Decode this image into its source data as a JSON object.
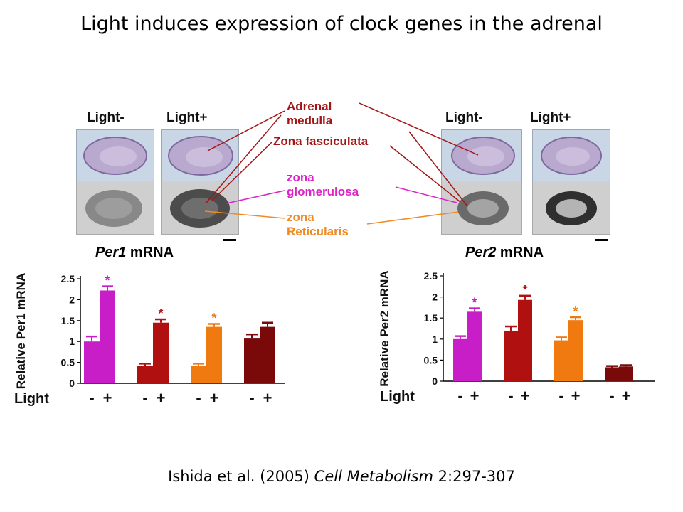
{
  "slide": {
    "title": "Light induces expression of clock genes in the adrenal",
    "citation_authors": "Ishida et al. (2005) ",
    "citation_journal": "Cell Metabolism",
    "citation_pages": " 2:297-307"
  },
  "figure": {
    "left_headers": [
      "Light-",
      "Light+"
    ],
    "right_headers": [
      "Light-",
      "Light+"
    ],
    "labels": {
      "adrenal_medulla": [
        "Adrenal",
        "medulla"
      ],
      "zona_fasciculata": "Zona fasciculata",
      "zona_glomerulosa": [
        "zona",
        "glomerulosa"
      ],
      "zona_reticularis": [
        "zona",
        "Reticularis"
      ]
    },
    "label_colors": {
      "adrenal_medulla": "#a31515",
      "zona_fasciculata": "#a31515",
      "zona_glomerulosa": "#dd22cc",
      "zona_reticularis": "#f08a24"
    },
    "mrna_left": {
      "gene": "Per1",
      "suffix": " mRNA"
    },
    "mrna_right": {
      "gene": "Per2",
      "suffix": " mRNA"
    }
  },
  "chart_data": [
    {
      "type": "bar",
      "ylabel": "Relative Per1 mRNA",
      "xlabel": "Light",
      "ylim": [
        0,
        2.5
      ],
      "yticks": [
        "0",
        "0.5",
        "1",
        "1.5",
        "2",
        "2.5"
      ],
      "groups": [
        {
          "color": "#c81ec8",
          "values": [
            1.0,
            2.22
          ],
          "errors": [
            0.12,
            0.1
          ],
          "star_on": 1
        },
        {
          "color": "#b01010",
          "values": [
            0.42,
            1.45
          ],
          "errors": [
            0.05,
            0.08
          ],
          "star_on": 1
        },
        {
          "color": "#f07a10",
          "values": [
            0.42,
            1.35
          ],
          "errors": [
            0.05,
            0.07
          ],
          "star_on": 1
        },
        {
          "color": "#7a0a0a",
          "values": [
            1.07,
            1.35
          ],
          "errors": [
            0.1,
            0.1
          ],
          "star_on": null
        }
      ],
      "light_labels": [
        "-",
        "+"
      ],
      "significance_marker": "*"
    },
    {
      "type": "bar",
      "ylabel": "Relative Per2 mRNA",
      "xlabel": "Light",
      "ylim": [
        0,
        2.5
      ],
      "yticks": [
        "0",
        "0.5",
        "1",
        "1.5",
        "2",
        "2.5"
      ],
      "groups": [
        {
          "color": "#c81ec8",
          "values": [
            1.0,
            1.65
          ],
          "errors": [
            0.07,
            0.08
          ],
          "star_on": 1
        },
        {
          "color": "#b01010",
          "values": [
            1.2,
            1.93
          ],
          "errors": [
            0.1,
            0.1
          ],
          "star_on": 1
        },
        {
          "color": "#f07a10",
          "values": [
            0.97,
            1.45
          ],
          "errors": [
            0.07,
            0.07
          ],
          "star_on": 1
        },
        {
          "color": "#7a0a0a",
          "values": [
            0.33,
            0.35
          ],
          "errors": [
            0.03,
            0.03
          ],
          "star_on": null
        }
      ],
      "light_labels": [
        "-",
        "+"
      ],
      "significance_marker": "*"
    }
  ]
}
